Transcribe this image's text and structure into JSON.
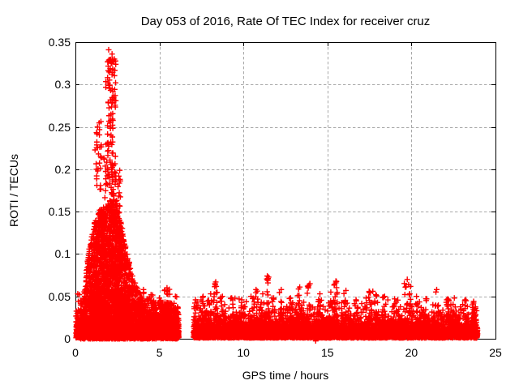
{
  "chart_data": {
    "type": "scatter",
    "title": "Day 053 of 2016, Rate Of TEC Index for receiver cruz",
    "xlabel": "GPS time / hours",
    "ylabel": "ROTI / TECUs",
    "xlim": [
      0,
      25
    ],
    "ylim": [
      0,
      0.35
    ],
    "xticks": [
      0,
      5,
      10,
      15,
      20,
      25
    ],
    "xtick_labels": [
      "0",
      "5",
      "10",
      "15",
      "20",
      "25"
    ],
    "yticks": [
      0,
      0.05,
      0.1,
      0.15,
      0.2,
      0.25,
      0.3,
      0.35
    ],
    "ytick_labels": [
      "0",
      "0.05",
      "0.1",
      "0.15",
      "0.2",
      "0.25",
      "0.3",
      "0.35"
    ],
    "grid": {
      "show": true,
      "color": "#a8a8a8",
      "dash": [
        3.4,
        2.6
      ]
    },
    "axis_color": "#000000",
    "marker": {
      "shape": "plus",
      "color": "#ff0000",
      "size": 7,
      "stroke_width": 1.4
    },
    "legend": "none",
    "data_summary": "Quiet ROTI band 0-0.05 TECU across the day; strong burst between ~0.5 h and ~4 h peaking at 0.341 TECU near 2.0-2.3 h; data gap from ~6.15 h to ~7.0 h; intermittent small spikes 0.05-0.074 TECU between 7 h and 24 h; data ends ~23.9 h",
    "seed": 20160533,
    "spike_base": 0.026,
    "bands": [
      {
        "x0": 0.03,
        "x1": 6.15,
        "n": 2800,
        "y0": 0.001,
        "scale": 0.008,
        "cap": 0.045
      },
      {
        "x0": 7.02,
        "x1": 23.93,
        "n": 6500,
        "y0": 0.001,
        "scale": 0.0085,
        "cap": 0.048
      }
    ],
    "burst": {
      "n": 3200,
      "power": 1.5,
      "env_x": [
        0.3,
        0.55,
        0.75,
        0.95,
        1.1,
        1.3,
        1.5,
        1.7,
        1.9,
        2.1,
        2.3,
        2.5,
        2.7,
        2.9,
        3.1,
        3.3,
        3.5,
        3.7,
        4.0,
        4.4,
        5.0,
        5.5,
        6.15
      ],
      "env_y": [
        0.04,
        0.06,
        0.1,
        0.12,
        0.135,
        0.145,
        0.155,
        0.15,
        0.16,
        0.165,
        0.17,
        0.165,
        0.14,
        0.12,
        0.1,
        0.085,
        0.07,
        0.06,
        0.052,
        0.047,
        0.042,
        0.044,
        0.038
      ]
    },
    "high_clusters": [
      {
        "x0": 1.8,
        "x1": 2.5,
        "y0": 0.17,
        "y1": 0.33,
        "n": 120
      },
      {
        "x0": 1.13,
        "x1": 1.62,
        "y0": 0.16,
        "y1": 0.258,
        "n": 30
      },
      {
        "x0": 1.6,
        "x1": 1.98,
        "y0": 0.15,
        "y1": 0.225,
        "n": 16
      },
      {
        "x0": 2.5,
        "x1": 2.78,
        "y0": 0.14,
        "y1": 0.2,
        "n": 12
      }
    ],
    "extra_points": [
      [
        1.98,
        0.341
      ],
      [
        2.18,
        0.336
      ],
      [
        2.32,
        0.33
      ],
      [
        14.3,
        -0.0025
      ]
    ],
    "spikes": [
      {
        "x": 0.14,
        "w": 0.2,
        "top": 0.053,
        "n": 5
      },
      {
        "x": 0.3,
        "w": 0.15,
        "top": 0.045,
        "n": 4
      },
      {
        "x": 4.05,
        "w": 0.18,
        "top": 0.058,
        "n": 7
      },
      {
        "x": 4.5,
        "w": 0.2,
        "top": 0.052,
        "n": 5
      },
      {
        "x": 5.0,
        "w": 0.2,
        "top": 0.048,
        "n": 5
      },
      {
        "x": 5.45,
        "w": 0.4,
        "top": 0.06,
        "n": 12
      },
      {
        "x": 5.95,
        "w": 0.2,
        "top": 0.05,
        "n": 6
      },
      {
        "x": 7.15,
        "w": 0.2,
        "top": 0.046,
        "n": 6
      },
      {
        "x": 7.6,
        "w": 0.25,
        "top": 0.05,
        "n": 7
      },
      {
        "x": 8.05,
        "w": 0.18,
        "top": 0.053,
        "n": 7
      },
      {
        "x": 8.35,
        "w": 0.25,
        "top": 0.067,
        "n": 16
      },
      {
        "x": 8.75,
        "w": 0.2,
        "top": 0.05,
        "n": 6
      },
      {
        "x": 9.3,
        "w": 0.25,
        "top": 0.048,
        "n": 6
      },
      {
        "x": 9.9,
        "w": 0.2,
        "top": 0.046,
        "n": 5
      },
      {
        "x": 10.45,
        "w": 0.25,
        "top": 0.05,
        "n": 6
      },
      {
        "x": 10.75,
        "w": 0.15,
        "top": 0.058,
        "n": 5
      },
      {
        "x": 11.15,
        "w": 0.18,
        "top": 0.053,
        "n": 6
      },
      {
        "x": 11.42,
        "w": 0.2,
        "top": 0.074,
        "n": 11
      },
      {
        "x": 11.8,
        "w": 0.2,
        "top": 0.048,
        "n": 5
      },
      {
        "x": 12.25,
        "w": 0.3,
        "top": 0.058,
        "n": 9
      },
      {
        "x": 12.8,
        "w": 0.2,
        "top": 0.048,
        "n": 5
      },
      {
        "x": 13.35,
        "w": 0.3,
        "top": 0.061,
        "n": 9
      },
      {
        "x": 13.95,
        "w": 0.35,
        "top": 0.065,
        "n": 11
      },
      {
        "x": 14.55,
        "w": 0.25,
        "top": 0.053,
        "n": 7
      },
      {
        "x": 15.2,
        "w": 0.2,
        "top": 0.055,
        "n": 7
      },
      {
        "x": 15.5,
        "w": 0.3,
        "top": 0.068,
        "n": 13
      },
      {
        "x": 16.1,
        "w": 0.25,
        "top": 0.057,
        "n": 7
      },
      {
        "x": 16.7,
        "w": 0.2,
        "top": 0.046,
        "n": 5
      },
      {
        "x": 17.3,
        "w": 0.2,
        "top": 0.048,
        "n": 5
      },
      {
        "x": 17.7,
        "w": 0.5,
        "top": 0.056,
        "n": 13
      },
      {
        "x": 18.4,
        "w": 0.25,
        "top": 0.05,
        "n": 6
      },
      {
        "x": 19.0,
        "w": 0.2,
        "top": 0.047,
        "n": 5
      },
      {
        "x": 19.75,
        "w": 0.45,
        "top": 0.07,
        "n": 16
      },
      {
        "x": 20.3,
        "w": 0.2,
        "top": 0.05,
        "n": 6
      },
      {
        "x": 20.9,
        "w": 0.2,
        "top": 0.047,
        "n": 5
      },
      {
        "x": 21.5,
        "w": 0.3,
        "top": 0.058,
        "n": 9
      },
      {
        "x": 22.1,
        "w": 0.2,
        "top": 0.046,
        "n": 5
      },
      {
        "x": 22.55,
        "w": 0.2,
        "top": 0.048,
        "n": 6
      },
      {
        "x": 23.2,
        "w": 0.4,
        "top": 0.046,
        "n": 8
      },
      {
        "x": 23.7,
        "w": 0.3,
        "top": 0.044,
        "n": 7
      }
    ]
  }
}
